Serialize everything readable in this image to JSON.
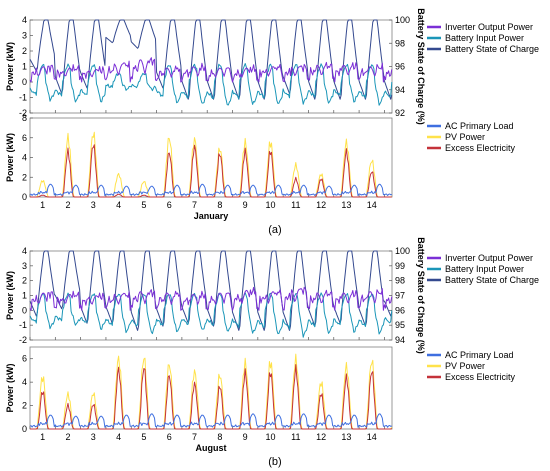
{
  "colors": {
    "inverter": "#7b2fd6",
    "battery_input": "#1b96b8",
    "soc": "#34498f",
    "ac_load": "#3f6fe0",
    "pv": "#ffe24a",
    "excess": "#c4323a"
  },
  "chart_data": [
    {
      "id": "a-top",
      "type": "line",
      "panel": "a",
      "ylabel": "Power (kW)",
      "y2label": "Battery State of Charge (%)",
      "ylim": [
        -2,
        4
      ],
      "y2lim": [
        92,
        100
      ],
      "yticks": [
        "-2",
        "-1",
        "0",
        "1",
        "2",
        "3",
        "4"
      ],
      "y2ticks": [
        "92",
        "94",
        "96",
        "98",
        "100"
      ],
      "legend": [
        "Inverter Output Power",
        "Battery Input Power",
        "Battery State of Charge"
      ],
      "series": [
        {
          "name": "Inverter Output Power",
          "color_key": "inverter",
          "axis": "left",
          "daily_peak": [
            1.1,
            1.0,
            0.9,
            1.3,
            1.6,
            1.0,
            1.1,
            1.0,
            1.0,
            1.1,
            1.1,
            1.2,
            1.2,
            1.1,
            1.0
          ]
        },
        {
          "name": "Battery Input Power",
          "color_key": "battery_input",
          "axis": "left",
          "daily_min": [
            -1.2,
            -1.3,
            -1.3,
            -0.5,
            -0.5,
            -1.4,
            -1.5,
            -1.6,
            -1.5,
            -1.5,
            -1.4,
            -1.4,
            -1.3,
            -1.5,
            -1.5
          ],
          "daily_max": [
            1.0,
            1.0,
            1.0,
            0.5,
            0.5,
            1.0,
            1.0,
            1.0,
            1.0,
            1.0,
            1.0,
            1.0,
            1.0,
            1.0,
            1.0
          ]
        },
        {
          "name": "Battery State of Charge",
          "color_key": "soc",
          "axis": "right",
          "daily_min": [
            95.5,
            93.5,
            94.0,
            98.0,
            97.5,
            94.0,
            93.0,
            93.0,
            93.0,
            93.0,
            93.5,
            93.0,
            93.0,
            93.0,
            93.0
          ],
          "daily_max": [
            100,
            100,
            100,
            100,
            100,
            100,
            100,
            100,
            100,
            100,
            100,
            100,
            100,
            100,
            100
          ]
        }
      ]
    },
    {
      "id": "a-bottom",
      "type": "line",
      "panel": "a",
      "ylabel": "Power (kW)",
      "ylim": [
        0,
        8
      ],
      "yticks": [
        "0",
        "2",
        "4",
        "6",
        "8"
      ],
      "xlabel": "January",
      "xticks": [
        "1",
        "2",
        "3",
        "4",
        "5",
        "6",
        "7",
        "8",
        "9",
        "10",
        "11",
        "12",
        "13",
        "14"
      ],
      "legend": [
        "AC Primary Load",
        "PV Power",
        "Excess Electricity"
      ],
      "series": [
        {
          "name": "AC Primary Load",
          "color_key": "ac_load",
          "daily_peak": [
            1.3,
            1.2,
            1.2,
            1.1,
            1.1,
            1.2,
            1.3,
            1.2,
            1.2,
            1.2,
            1.2,
            1.1,
            1.2,
            1.3,
            1.3
          ]
        },
        {
          "name": "PV Power",
          "color_key": "pv",
          "daily_peak": [
            1.8,
            6.5,
            7.0,
            2.5,
            1.7,
            6.5,
            6.3,
            5.3,
            6.0,
            6.0,
            3.5,
            2.5,
            6.0,
            4.0,
            1.0
          ]
        },
        {
          "name": "Excess Electricity",
          "color_key": "excess",
          "daily_peak": [
            0.2,
            5.0,
            5.8,
            0.3,
            0.2,
            4.9,
            5.5,
            4.8,
            5.0,
            5.1,
            2.0,
            2.0,
            5.0,
            2.8,
            0.2
          ]
        }
      ]
    },
    {
      "id": "b-top",
      "type": "line",
      "panel": "b",
      "ylabel": "Power (kW)",
      "y2label": "Battery State of Charge (%)",
      "ylim": [
        -2,
        4
      ],
      "y2lim": [
        94,
        100
      ],
      "yticks": [
        "-2",
        "-1",
        "0",
        "1",
        "2",
        "3",
        "4"
      ],
      "y2ticks": [
        "94",
        "95",
        "96",
        "97",
        "98",
        "99",
        "100"
      ],
      "legend": [
        "Inverter Output Power",
        "Battery Input Power",
        "Battery State of Charge"
      ],
      "series": [
        {
          "name": "Inverter Output Power",
          "color_key": "inverter",
          "axis": "left",
          "daily_peak": [
            1.3,
            1.2,
            1.1,
            1.2,
            1.4,
            1.3,
            1.2,
            1.3,
            1.5,
            1.4,
            1.6,
            1.3,
            1.3,
            1.4,
            1.2
          ]
        },
        {
          "name": "Battery Input Power",
          "color_key": "battery_input",
          "axis": "left",
          "daily_min": [
            -1.2,
            -1.0,
            -1.3,
            -1.5,
            -1.6,
            -1.5,
            -1.4,
            -1.5,
            -1.6,
            -1.7,
            -1.8,
            -1.6,
            -1.5,
            -1.6,
            -1.3
          ],
          "daily_max": [
            1.0,
            1.0,
            1.0,
            1.0,
            1.0,
            1.0,
            1.0,
            1.0,
            1.0,
            1.0,
            1.0,
            1.0,
            1.0,
            1.0,
            1.0
          ]
        },
        {
          "name": "Battery State of Charge",
          "color_key": "soc",
          "axis": "right",
          "daily_min": [
            95.5,
            96.0,
            95.0,
            95.0,
            94.5,
            94.8,
            95.0,
            94.8,
            94.5,
            94.5,
            94.5,
            94.8,
            95.0,
            94.8,
            95.5
          ],
          "daily_max": [
            100,
            100,
            100,
            100,
            100,
            100,
            100,
            100,
            100,
            100,
            100,
            100,
            100,
            100,
            100
          ]
        }
      ]
    },
    {
      "id": "b-bottom",
      "type": "line",
      "panel": "b",
      "ylabel": "Power (kW)",
      "ylim": [
        0,
        7
      ],
      "yticks": [
        "0",
        "2",
        "4",
        "6"
      ],
      "xlabel": "August",
      "xticks": [
        "1",
        "2",
        "3",
        "4",
        "5",
        "6",
        "7",
        "8",
        "9",
        "10",
        "11",
        "12",
        "13",
        "14"
      ],
      "legend": [
        "AC Primary Load",
        "PV Power",
        "Excess Electricity"
      ],
      "series": [
        {
          "name": "AC Primary Load",
          "color_key": "ac_load",
          "daily_peak": [
            1.2,
            1.1,
            1.1,
            1.2,
            1.3,
            1.2,
            1.2,
            1.2,
            1.3,
            1.2,
            1.3,
            1.2,
            1.2,
            1.3,
            1.2
          ]
        },
        {
          "name": "PV Power",
          "color_key": "pv",
          "daily_peak": [
            4.8,
            3.2,
            3.3,
            6.5,
            6.6,
            6.0,
            5.3,
            5.0,
            6.1,
            6.2,
            6.4,
            4.3,
            5.8,
            6.3,
            3.5
          ]
        },
        {
          "name": "Excess Electricity",
          "color_key": "excess",
          "daily_peak": [
            3.5,
            2.2,
            2.3,
            5.5,
            5.7,
            5.0,
            4.2,
            4.0,
            5.2,
            5.3,
            5.5,
            3.3,
            4.8,
            5.4,
            2.4
          ]
        }
      ]
    }
  ],
  "captions": {
    "a": "(a)",
    "b": "(b)"
  }
}
